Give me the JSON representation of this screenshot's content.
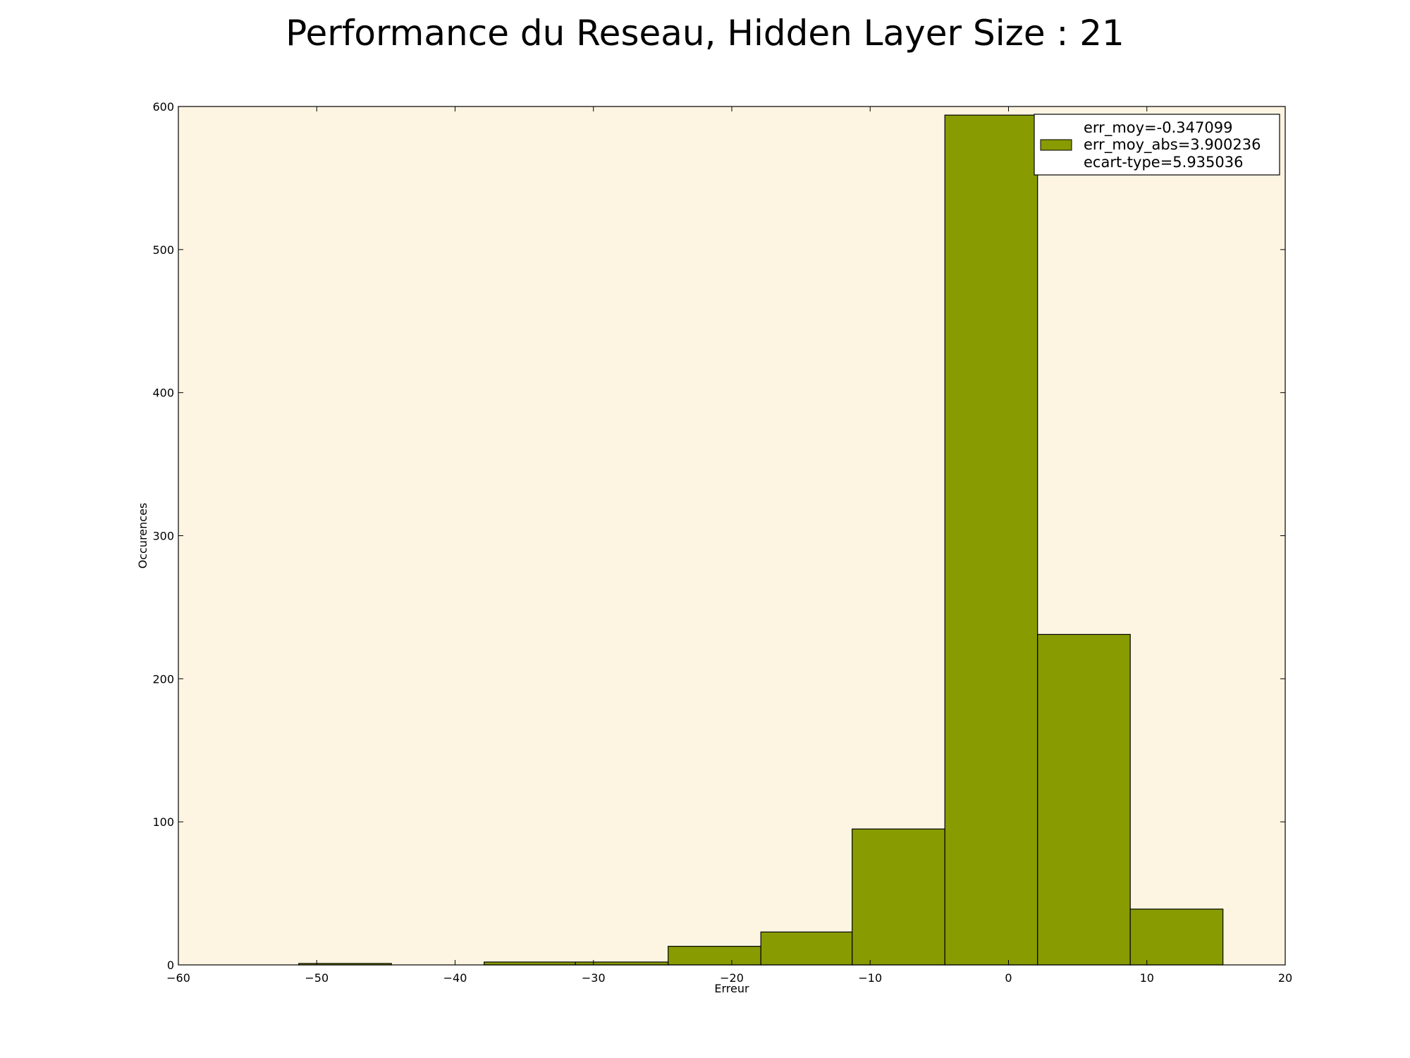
{
  "chart_data": {
    "type": "bar",
    "title": "Performance du Reseau, Hidden Layer Size : 21",
    "xlabel": "Erreur",
    "ylabel": "Occurences",
    "xlim": [
      -60,
      20
    ],
    "ylim": [
      0,
      600
    ],
    "x_ticks": [
      -60,
      -50,
      -40,
      -30,
      -20,
      -10,
      0,
      10,
      20
    ],
    "x_tick_labels": [
      "−60",
      "−50",
      "−40",
      "−30",
      "−20",
      "−10",
      "0",
      "10",
      "20"
    ],
    "y_ticks": [
      0,
      100,
      200,
      300,
      400,
      500,
      600
    ],
    "y_tick_labels": [
      "0",
      "100",
      "200",
      "300",
      "400",
      "500",
      "600"
    ],
    "bins": [
      {
        "x0": -51.3,
        "x1": -44.6,
        "count": 1
      },
      {
        "x0": -44.6,
        "x1": -37.9,
        "count": 0
      },
      {
        "x0": -37.9,
        "x1": -31.3,
        "count": 2
      },
      {
        "x0": -31.3,
        "x1": -24.6,
        "count": 2
      },
      {
        "x0": -24.6,
        "x1": -17.9,
        "count": 13
      },
      {
        "x0": -17.9,
        "x1": -11.3,
        "count": 23
      },
      {
        "x0": -11.3,
        "x1": -4.6,
        "count": 95
      },
      {
        "x0": -4.6,
        "x1": 2.1,
        "count": 594
      },
      {
        "x0": 2.1,
        "x1": 8.8,
        "count": 231
      },
      {
        "x0": 8.8,
        "x1": 15.5,
        "count": 39
      }
    ],
    "legend": {
      "position": "upper-right",
      "lines": [
        "err_moy=-0.347099",
        "err_moy_abs=3.900236",
        "ecart-type=5.935036"
      ]
    },
    "grid": false,
    "colors": {
      "bar_fill": "#889b00",
      "bar_edge": "#000000",
      "plot_background": "#fdf5e2",
      "figure_background": "#ffffff"
    }
  }
}
